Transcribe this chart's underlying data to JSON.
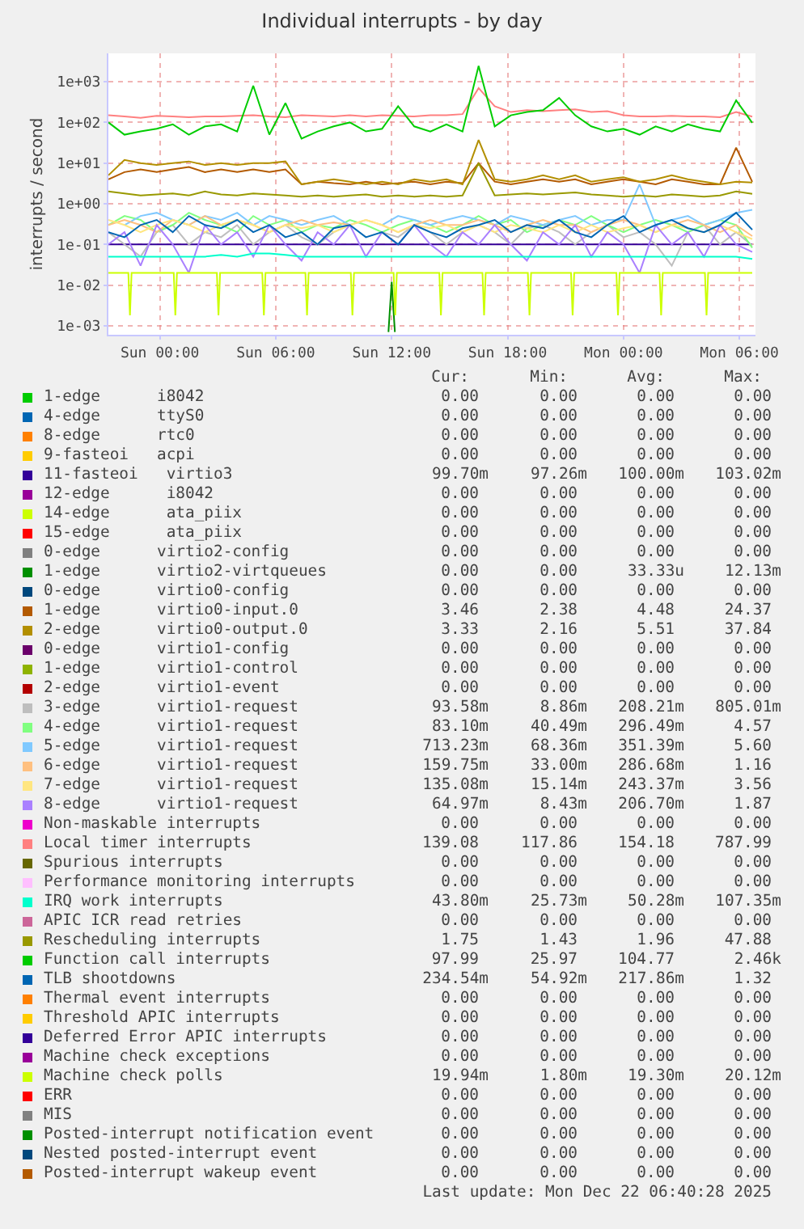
{
  "chart_data": {
    "type": "line",
    "title": "Individual interrupts - by day",
    "ylabel": "interrupts / second",
    "log": "y",
    "grid": true,
    "legend": "bottom",
    "xlim": [
      "2025-12-20T21:20",
      "2025-12-22T06:50"
    ],
    "xticks": [
      {
        "value": "2025-12-21T00:00",
        "label": "Sun 00:00"
      },
      {
        "value": "2025-12-21T06:00",
        "label": "Sun 06:00"
      },
      {
        "value": "2025-12-21T12:00",
        "label": "Sun 12:00"
      },
      {
        "value": "2025-12-21T18:00",
        "label": "Sun 18:00"
      },
      {
        "value": "2025-12-22T00:00",
        "label": "Mon 00:00"
      },
      {
        "value": "2025-12-22T06:00",
        "label": "Mon 06:00"
      }
    ],
    "ylim": [
      0.0006,
      5000
    ],
    "yticks": [
      {
        "value": 0.001,
        "label": "1e-03"
      },
      {
        "value": 0.01,
        "label": "1e-02"
      },
      {
        "value": 0.1,
        "label": "1e-01"
      },
      {
        "value": 1,
        "label": "1e+00"
      },
      {
        "value": 10,
        "label": "1e+01"
      },
      {
        "value": 100,
        "label": "1e+02"
      },
      {
        "value": 1000,
        "label": "1e+03"
      }
    ],
    "x": [
      "2025-12-20T21:20",
      "2025-12-20T22:10",
      "2025-12-20T23:00",
      "2025-12-20T23:50",
      "2025-12-21T00:40",
      "2025-12-21T01:30",
      "2025-12-21T02:20",
      "2025-12-21T03:10",
      "2025-12-21T04:00",
      "2025-12-21T04:50",
      "2025-12-21T05:40",
      "2025-12-21T06:30",
      "2025-12-21T07:20",
      "2025-12-21T08:10",
      "2025-12-21T09:00",
      "2025-12-21T09:50",
      "2025-12-21T10:40",
      "2025-12-21T11:30",
      "2025-12-21T12:20",
      "2025-12-21T13:10",
      "2025-12-21T14:00",
      "2025-12-21T14:50",
      "2025-12-21T15:40",
      "2025-12-21T16:30",
      "2025-12-21T17:20",
      "2025-12-21T18:10",
      "2025-12-21T19:00",
      "2025-12-21T19:50",
      "2025-12-21T20:40",
      "2025-12-21T21:30",
      "2025-12-21T22:20",
      "2025-12-21T23:10",
      "2025-12-22T00:00",
      "2025-12-22T00:50",
      "2025-12-22T01:40",
      "2025-12-22T02:30",
      "2025-12-22T03:20",
      "2025-12-22T04:10",
      "2025-12-22T05:00",
      "2025-12-22T05:50",
      "2025-12-22T06:40"
    ],
    "series": [
      {
        "name": "1-edge      i8042",
        "color": "#00cc00",
        "values": [
          null,
          null,
          null,
          null,
          null,
          null,
          null,
          null,
          null,
          null,
          null,
          null,
          null,
          null,
          null,
          null,
          null,
          null,
          null,
          null,
          null,
          null,
          null,
          null,
          null,
          null,
          null,
          null,
          null,
          null,
          null,
          null,
          null,
          null,
          null,
          null,
          null,
          null,
          null,
          null,
          null
        ]
      },
      {
        "name": "4-edge      ttyS0",
        "color": "#0066b3",
        "values": [
          null,
          null,
          null,
          null,
          null,
          null,
          null,
          null,
          null,
          null,
          null,
          null,
          null,
          null,
          null,
          null,
          null,
          null,
          null,
          null,
          null,
          null,
          null,
          null,
          null,
          null,
          null,
          null,
          null,
          null,
          null,
          null,
          null,
          null,
          null,
          null,
          null,
          null,
          null,
          null,
          null
        ]
      },
      {
        "name": "8-edge      rtc0",
        "color": "#ff8000",
        "values": [
          null,
          null,
          null,
          null,
          null,
          null,
          null,
          null,
          null,
          null,
          null,
          null,
          null,
          null,
          null,
          null,
          null,
          null,
          null,
          null,
          null,
          null,
          null,
          null,
          null,
          null,
          null,
          null,
          null,
          null,
          null,
          null,
          null,
          null,
          null,
          null,
          null,
          null,
          null,
          null,
          null
        ]
      },
      {
        "name": "9-fasteoi   acpi",
        "color": "#ffcc00",
        "values": [
          null,
          null,
          null,
          null,
          null,
          null,
          null,
          null,
          null,
          null,
          null,
          null,
          null,
          null,
          null,
          null,
          null,
          null,
          null,
          null,
          null,
          null,
          null,
          null,
          null,
          null,
          null,
          null,
          null,
          null,
          null,
          null,
          null,
          null,
          null,
          null,
          null,
          null,
          null,
          null,
          null
        ]
      },
      {
        "name": "11-fasteoi   virtio3",
        "color": "#330099",
        "values": [
          0.1,
          0.1,
          0.1,
          0.1,
          0.1,
          0.1,
          0.1,
          0.1,
          0.1,
          0.1,
          0.1,
          0.1,
          0.1,
          0.1,
          0.1,
          0.1,
          0.1,
          0.1,
          0.1,
          0.1,
          0.1,
          0.1,
          0.1,
          0.1,
          0.1,
          0.1,
          0.1,
          0.1,
          0.1,
          0.1,
          0.1,
          0.1,
          0.1,
          0.1,
          0.1,
          0.1,
          0.1,
          0.1,
          0.1,
          0.1,
          0.1
        ]
      },
      {
        "name": "12-edge      i8042",
        "color": "#990099",
        "values": [
          null,
          null,
          null,
          null,
          null,
          null,
          null,
          null,
          null,
          null,
          null,
          null,
          null,
          null,
          null,
          null,
          null,
          null,
          null,
          null,
          null,
          null,
          null,
          null,
          null,
          null,
          null,
          null,
          null,
          null,
          null,
          null,
          null,
          null,
          null,
          null,
          null,
          null,
          null,
          null,
          null
        ]
      },
      {
        "name": "14-edge      ata_piix",
        "color": "#ccff00",
        "values": [
          null,
          null,
          null,
          null,
          null,
          null,
          null,
          null,
          null,
          null,
          null,
          null,
          null,
          null,
          null,
          null,
          null,
          null,
          null,
          null,
          null,
          null,
          null,
          null,
          null,
          null,
          null,
          null,
          null,
          null,
          null,
          null,
          null,
          null,
          null,
          null,
          null,
          null,
          null,
          null,
          null
        ]
      },
      {
        "name": "15-edge      ata_piix",
        "color": "#ff0000",
        "values": [
          null,
          null,
          null,
          null,
          null,
          null,
          null,
          null,
          null,
          null,
          null,
          null,
          null,
          null,
          null,
          null,
          null,
          null,
          null,
          null,
          null,
          null,
          null,
          null,
          null,
          null,
          null,
          null,
          null,
          null,
          null,
          null,
          null,
          null,
          null,
          null,
          null,
          null,
          null,
          null,
          null
        ]
      },
      {
        "name": "0-edge      virtio2-config",
        "color": "#808080",
        "values": [
          null,
          null,
          null,
          null,
          null,
          null,
          null,
          null,
          null,
          null,
          null,
          null,
          null,
          null,
          null,
          null,
          null,
          null,
          null,
          null,
          null,
          null,
          null,
          null,
          null,
          null,
          null,
          null,
          null,
          null,
          null,
          null,
          null,
          null,
          null,
          null,
          null,
          null,
          null,
          null,
          null
        ]
      },
      {
        "name": "1-edge      virtio2-virtqueues",
        "color": "#008f00",
        "x": [
          "2025-12-21T11:50",
          "2025-12-21T12:00",
          "2025-12-21T12:10"
        ],
        "values": [
          0.0007,
          0.012,
          0.0007
        ]
      },
      {
        "name": "0-edge      virtio0-config",
        "color": "#00487d",
        "values": [
          null,
          null,
          null,
          null,
          null,
          null,
          null,
          null,
          null,
          null,
          null,
          null,
          null,
          null,
          null,
          null,
          null,
          null,
          null,
          null,
          null,
          null,
          null,
          null,
          null,
          null,
          null,
          null,
          null,
          null,
          null,
          null,
          null,
          null,
          null,
          null,
          null,
          null,
          null,
          null,
          null
        ]
      },
      {
        "name": "1-edge      virtio0-input.0",
        "color": "#b35a00",
        "values": [
          4,
          6,
          7,
          6,
          7,
          8,
          6,
          7,
          6,
          7,
          6,
          7,
          3,
          3.5,
          3.2,
          3,
          3.5,
          3,
          3.2,
          3.5,
          3,
          3.5,
          3.2,
          10,
          3.5,
          3,
          3.5,
          4,
          3.5,
          4,
          3,
          3.5,
          4,
          3.5,
          3,
          4,
          3.5,
          3,
          3,
          24,
          3.46
        ]
      },
      {
        "name": "2-edge      virtio0-output.0",
        "color": "#b38f00",
        "values": [
          5,
          12,
          10,
          9,
          10,
          11,
          9,
          10,
          9,
          10,
          10,
          11,
          3,
          3.5,
          4,
          3.5,
          3,
          3.5,
          3,
          4,
          3.5,
          4,
          3,
          37,
          4,
          3.5,
          4,
          5,
          4,
          5,
          3.5,
          4,
          4.5,
          3.5,
          4,
          5,
          4,
          3.5,
          3,
          3.5,
          3.33
        ]
      },
      {
        "name": "0-edge      virtio1-config",
        "color": "#6b006b",
        "values": [
          null,
          null,
          null,
          null,
          null,
          null,
          null,
          null,
          null,
          null,
          null,
          null,
          null,
          null,
          null,
          null,
          null,
          null,
          null,
          null,
          null,
          null,
          null,
          null,
          null,
          null,
          null,
          null,
          null,
          null,
          null,
          null,
          null,
          null,
          null,
          null,
          null,
          null,
          null,
          null,
          null
        ]
      },
      {
        "name": "1-edge      virtio1-control",
        "color": "#8fb300",
        "values": [
          null,
          null,
          null,
          null,
          null,
          null,
          null,
          null,
          null,
          null,
          null,
          null,
          null,
          null,
          null,
          null,
          null,
          null,
          null,
          null,
          null,
          null,
          null,
          null,
          null,
          null,
          null,
          null,
          null,
          null,
          null,
          null,
          null,
          null,
          null,
          null,
          null,
          null,
          null,
          null,
          null
        ]
      },
      {
        "name": "2-edge      virtio1-event",
        "color": "#b30000",
        "values": [
          null,
          null,
          null,
          null,
          null,
          null,
          null,
          null,
          null,
          null,
          null,
          null,
          null,
          null,
          null,
          null,
          null,
          null,
          null,
          null,
          null,
          null,
          null,
          null,
          null,
          null,
          null,
          null,
          null,
          null,
          null,
          null,
          null,
          null,
          null,
          null,
          null,
          null,
          null,
          null,
          null
        ]
      },
      {
        "name": "3-edge      virtio1-request",
        "color": "#bebebe",
        "values": [
          0.2,
          0.1,
          0.05,
          0.2,
          0.3,
          0.1,
          0.2,
          0.15,
          0.3,
          0.1,
          0.2,
          0.3,
          0.15,
          0.1,
          0.2,
          0.3,
          null,
          0.2,
          0.15,
          0.3,
          0.2,
          0.1,
          0.2,
          0.3,
          0.2,
          0.1,
          0.25,
          0.3,
          0.2,
          0.1,
          0.2,
          0.3,
          0.15,
          0.2,
          0.1,
          0.03,
          0.2,
          0.3,
          0.1,
          0.2,
          0.094
        ]
      },
      {
        "name": "4-edge      virtio1-request",
        "color": "#80ff80",
        "values": [
          0.3,
          0.5,
          0.4,
          0.2,
          0.3,
          0.6,
          0.4,
          0.3,
          0.2,
          0.5,
          0.3,
          0.4,
          0.2,
          0.3,
          0.25,
          0.4,
          0.3,
          0.2,
          0.3,
          0.4,
          0.3,
          0.2,
          0.3,
          0.5,
          0.3,
          0.4,
          0.2,
          0.3,
          0.4,
          0.3,
          0.5,
          0.3,
          0.2,
          0.3,
          0.4,
          0.3,
          0.2,
          0.3,
          0.4,
          0.3,
          0.083
        ]
      },
      {
        "name": "5-edge      virtio1-request",
        "color": "#80c9ff",
        "values": [
          null,
          0.3,
          0.5,
          0.6,
          0.4,
          0.3,
          0.5,
          0.4,
          0.6,
          0.3,
          0.5,
          0.4,
          0.3,
          0.4,
          0.5,
          0.3,
          null,
          0.3,
          0.5,
          0.4,
          0.3,
          0.4,
          0.5,
          0.4,
          0.3,
          0.5,
          0.4,
          0.3,
          0.4,
          0.5,
          0.3,
          0.4,
          0.4,
          3,
          0.3,
          0.4,
          0.5,
          0.3,
          0.4,
          0.6,
          0.71
        ]
      },
      {
        "name": "6-edge      virtio1-request",
        "color": "#ffc080",
        "values": [
          0.3,
          0.4,
          0.3,
          0.2,
          0.4,
          0.3,
          0.5,
          0.3,
          0.4,
          0.3,
          0.2,
          0.3,
          0.4,
          0.3,
          0.35,
          0.3,
          0.4,
          0.3,
          0.2,
          0.3,
          0.4,
          0.3,
          0.3,
          0.4,
          0.3,
          0.2,
          0.3,
          0.4,
          0.3,
          0.3,
          0.2,
          0.3,
          0.4,
          0.3,
          0.2,
          0.3,
          0.4,
          0.3,
          0.2,
          0.3,
          0.16
        ]
      },
      {
        "name": "7-edge      virtio1-request",
        "color": "#ffe680",
        "values": [
          0.4,
          0.3,
          0.2,
          0.3,
          0.4,
          0.3,
          0.2,
          0.3,
          0.4,
          0.3,
          0.2,
          0.3,
          0.25,
          0.3,
          0.2,
          0.3,
          0.4,
          0.3,
          0.2,
          0.3,
          0.25,
          0.3,
          0.2,
          0.3,
          0.2,
          0.3,
          0.25,
          0.2,
          0.3,
          0.2,
          0.3,
          0.2,
          0.25,
          0.3,
          0.2,
          0.3,
          0.25,
          0.2,
          0.3,
          0.2,
          0.135
        ]
      },
      {
        "name": "8-edge      virtio1-request",
        "color": "#aa80ff",
        "values": [
          0.1,
          0.2,
          0.03,
          0.3,
          0.1,
          0.02,
          0.3,
          0.1,
          0.2,
          0.05,
          0.3,
          0.1,
          0.04,
          0.2,
          0.1,
          0.3,
          0.05,
          0.2,
          0.1,
          0.3,
          0.1,
          0.05,
          0.2,
          0.1,
          0.3,
          0.1,
          0.04,
          0.2,
          0.1,
          0.3,
          0.05,
          0.2,
          0.1,
          0.02,
          0.3,
          0.1,
          0.2,
          0.05,
          0.3,
          0.1,
          0.065
        ]
      },
      {
        "name": "Non-maskable interrupts",
        "color": "#ee00cc",
        "values": [
          null,
          null,
          null,
          null,
          null,
          null,
          null,
          null,
          null,
          null,
          null,
          null,
          null,
          null,
          null,
          null,
          null,
          null,
          null,
          null,
          null,
          null,
          null,
          null,
          null,
          null,
          null,
          null,
          null,
          null,
          null,
          null,
          null,
          null,
          null,
          null,
          null,
          null,
          null,
          null,
          null
        ]
      },
      {
        "name": "Local timer interrupts",
        "color": "#ff8080",
        "values": [
          150,
          140,
          130,
          145,
          140,
          135,
          140,
          140,
          145,
          150,
          140,
          135,
          150,
          145,
          140,
          150,
          140,
          150,
          145,
          140,
          150,
          150,
          160,
          700,
          250,
          180,
          200,
          190,
          200,
          210,
          180,
          190,
          150,
          140,
          140,
          145,
          140,
          140,
          135,
          180,
          139
        ]
      },
      {
        "name": "Spurious interrupts",
        "color": "#666600",
        "values": [
          null,
          null,
          null,
          null,
          null,
          null,
          null,
          null,
          null,
          null,
          null,
          null,
          null,
          null,
          null,
          null,
          null,
          null,
          null,
          null,
          null,
          null,
          null,
          null,
          null,
          null,
          null,
          null,
          null,
          null,
          null,
          null,
          null,
          null,
          null,
          null,
          null,
          null,
          null,
          null,
          null
        ]
      },
      {
        "name": "Performance monitoring interrupts",
        "color": "#ffbfff",
        "values": [
          null,
          null,
          null,
          null,
          null,
          null,
          null,
          null,
          null,
          null,
          null,
          null,
          null,
          null,
          null,
          null,
          null,
          null,
          null,
          null,
          null,
          null,
          null,
          null,
          null,
          null,
          null,
          null,
          null,
          null,
          null,
          null,
          null,
          null,
          null,
          null,
          null,
          null,
          null,
          null,
          null
        ]
      },
      {
        "name": "IRQ work interrupts",
        "color": "#00ffcc",
        "values": [
          0.05,
          0.05,
          0.05,
          0.05,
          0.05,
          0.05,
          0.05,
          0.055,
          0.05,
          0.06,
          0.06,
          0.055,
          0.05,
          0.05,
          0.05,
          0.05,
          0.05,
          0.05,
          0.05,
          0.05,
          0.05,
          0.05,
          0.05,
          0.05,
          0.05,
          0.05,
          0.05,
          0.05,
          0.05,
          0.05,
          0.05,
          0.05,
          0.05,
          0.05,
          0.05,
          0.05,
          0.05,
          0.05,
          0.05,
          0.05,
          0.044
        ]
      },
      {
        "name": "APIC ICR read retries",
        "color": "#cc6699",
        "values": [
          null,
          null,
          null,
          null,
          null,
          null,
          null,
          null,
          null,
          null,
          null,
          null,
          null,
          null,
          null,
          null,
          null,
          null,
          null,
          null,
          null,
          null,
          null,
          null,
          null,
          null,
          null,
          null,
          null,
          null,
          null,
          null,
          null,
          null,
          null,
          null,
          null,
          null,
          null,
          null,
          null
        ]
      },
      {
        "name": "Rescheduling interrupts",
        "color": "#999900",
        "values": [
          2,
          1.8,
          1.6,
          1.7,
          1.8,
          1.6,
          2,
          1.7,
          1.6,
          1.8,
          1.7,
          1.6,
          1.5,
          1.6,
          1.5,
          1.6,
          1.7,
          1.5,
          1.6,
          1.5,
          1.6,
          1.5,
          1.6,
          10,
          1.6,
          1.7,
          1.8,
          1.7,
          1.8,
          1.9,
          1.7,
          1.6,
          1.5,
          1.6,
          1.5,
          1.7,
          1.6,
          1.5,
          1.6,
          2,
          1.75
        ]
      },
      {
        "name": "Function call interrupts",
        "color": "#00cc00",
        "values": [
          100,
          50,
          60,
          70,
          90,
          50,
          80,
          90,
          60,
          800,
          50,
          300,
          40,
          60,
          80,
          100,
          60,
          70,
          250,
          80,
          60,
          90,
          60,
          2460,
          80,
          150,
          180,
          200,
          400,
          150,
          80,
          60,
          70,
          50,
          80,
          60,
          90,
          70,
          60,
          350,
          98
        ]
      },
      {
        "name": "TLB shootdowns",
        "color": "#0066b3",
        "values": [
          0.2,
          0.15,
          0.3,
          0.4,
          0.2,
          0.5,
          0.3,
          0.25,
          0.4,
          0.2,
          0.3,
          0.15,
          0.2,
          0.1,
          0.25,
          0.3,
          0.15,
          0.2,
          0.1,
          0.3,
          0.2,
          0.15,
          0.25,
          0.3,
          0.4,
          0.2,
          0.3,
          0.25,
          0.4,
          0.2,
          0.15,
          0.3,
          0.5,
          0.2,
          0.3,
          0.4,
          0.25,
          0.2,
          0.3,
          0.6,
          0.23
        ]
      },
      {
        "name": "Thermal event interrupts",
        "color": "#ff8000",
        "values": [
          null,
          null,
          null,
          null,
          null,
          null,
          null,
          null,
          null,
          null,
          null,
          null,
          null,
          null,
          null,
          null,
          null,
          null,
          null,
          null,
          null,
          null,
          null,
          null,
          null,
          null,
          null,
          null,
          null,
          null,
          null,
          null,
          null,
          null,
          null,
          null,
          null,
          null,
          null,
          null,
          null
        ]
      },
      {
        "name": "Threshold APIC interrupts",
        "color": "#ffcc00",
        "values": [
          null,
          null,
          null,
          null,
          null,
          null,
          null,
          null,
          null,
          null,
          null,
          null,
          null,
          null,
          null,
          null,
          null,
          null,
          null,
          null,
          null,
          null,
          null,
          null,
          null,
          null,
          null,
          null,
          null,
          null,
          null,
          null,
          null,
          null,
          null,
          null,
          null,
          null,
          null,
          null,
          null
        ]
      },
      {
        "name": "Deferred Error APIC interrupts",
        "color": "#330099",
        "values": [
          null,
          null,
          null,
          null,
          null,
          null,
          null,
          null,
          null,
          null,
          null,
          null,
          null,
          null,
          null,
          null,
          null,
          null,
          null,
          null,
          null,
          null,
          null,
          null,
          null,
          null,
          null,
          null,
          null,
          null,
          null,
          null,
          null,
          null,
          null,
          null,
          null,
          null,
          null,
          null,
          null
        ]
      },
      {
        "name": "Machine check exceptions",
        "color": "#990099",
        "values": [
          null,
          null,
          null,
          null,
          null,
          null,
          null,
          null,
          null,
          null,
          null,
          null,
          null,
          null,
          null,
          null,
          null,
          null,
          null,
          null,
          null,
          null,
          null,
          null,
          null,
          null,
          null,
          null,
          null,
          null,
          null,
          null,
          null,
          null,
          null,
          null,
          null,
          null,
          null,
          null,
          null
        ]
      },
      {
        "name": "Machine check polls",
        "color": "#ccff00",
        "x": [
          "2025-12-20T21:20",
          "2025-12-20T22:22",
          "2025-12-20T22:27",
          "2025-12-20T22:32",
          "2025-12-21T00:43",
          "2025-12-21T00:48",
          "2025-12-21T00:53",
          "2025-12-21T02:57",
          "2025-12-21T03:02",
          "2025-12-21T03:07",
          "2025-12-21T05:18",
          "2025-12-21T05:23",
          "2025-12-21T05:28",
          "2025-12-21T07:32",
          "2025-12-21T07:37",
          "2025-12-21T07:42",
          "2025-12-21T09:53",
          "2025-12-21T09:58",
          "2025-12-21T10:03",
          "2025-12-21T12:06",
          "2025-12-21T12:11",
          "2025-12-21T12:16",
          "2025-12-21T14:28",
          "2025-12-21T14:33",
          "2025-12-21T14:38",
          "2025-12-21T16:42",
          "2025-12-21T16:47",
          "2025-12-21T16:52",
          "2025-12-21T19:03",
          "2025-12-21T19:08",
          "2025-12-21T19:13",
          "2025-12-21T21:17",
          "2025-12-21T21:22",
          "2025-12-21T21:27",
          "2025-12-21T23:38",
          "2025-12-21T23:43",
          "2025-12-21T23:48",
          "2025-12-22T01:52",
          "2025-12-22T01:57",
          "2025-12-22T02:02",
          "2025-12-22T04:13",
          "2025-12-22T04:18",
          "2025-12-22T04:23",
          "2025-12-22T06:40"
        ],
        "values": [
          0.02,
          0.02,
          0.0018,
          0.02,
          0.02,
          0.0018,
          0.02,
          0.02,
          0.0018,
          0.02,
          0.02,
          0.0018,
          0.02,
          0.02,
          0.0018,
          0.02,
          0.02,
          0.0018,
          0.02,
          0.02,
          0.0018,
          0.02,
          0.02,
          0.0018,
          0.02,
          0.02,
          0.0018,
          0.02,
          0.02,
          0.0018,
          0.02,
          0.02,
          0.0018,
          0.02,
          0.02,
          0.0018,
          0.02,
          0.02,
          0.0018,
          0.02,
          0.02,
          0.0018,
          0.02,
          0.02
        ]
      },
      {
        "name": "ERR",
        "color": "#ff0000",
        "values": [
          null,
          null,
          null,
          null,
          null,
          null,
          null,
          null,
          null,
          null,
          null,
          null,
          null,
          null,
          null,
          null,
          null,
          null,
          null,
          null,
          null,
          null,
          null,
          null,
          null,
          null,
          null,
          null,
          null,
          null,
          null,
          null,
          null,
          null,
          null,
          null,
          null,
          null,
          null,
          null,
          null
        ]
      },
      {
        "name": "MIS",
        "color": "#808080",
        "values": [
          null,
          null,
          null,
          null,
          null,
          null,
          null,
          null,
          null,
          null,
          null,
          null,
          null,
          null,
          null,
          null,
          null,
          null,
          null,
          null,
          null,
          null,
          null,
          null,
          null,
          null,
          null,
          null,
          null,
          null,
          null,
          null,
          null,
          null,
          null,
          null,
          null,
          null,
          null,
          null,
          null
        ]
      },
      {
        "name": "Posted-interrupt notification event",
        "color": "#008f00",
        "values": [
          null,
          null,
          null,
          null,
          null,
          null,
          null,
          null,
          null,
          null,
          null,
          null,
          null,
          null,
          null,
          null,
          null,
          null,
          null,
          null,
          null,
          null,
          null,
          null,
          null,
          null,
          null,
          null,
          null,
          null,
          null,
          null,
          null,
          null,
          null,
          null,
          null,
          null,
          null,
          null,
          null
        ]
      },
      {
        "name": "Nested posted-interrupt event",
        "color": "#00487d",
        "values": [
          null,
          null,
          null,
          null,
          null,
          null,
          null,
          null,
          null,
          null,
          null,
          null,
          null,
          null,
          null,
          null,
          null,
          null,
          null,
          null,
          null,
          null,
          null,
          null,
          null,
          null,
          null,
          null,
          null,
          null,
          null,
          null,
          null,
          null,
          null,
          null,
          null,
          null,
          null,
          null,
          null
        ]
      },
      {
        "name": "Posted-interrupt wakeup event",
        "color": "#b35a00",
        "values": [
          null,
          null,
          null,
          null,
          null,
          null,
          null,
          null,
          null,
          null,
          null,
          null,
          null,
          null,
          null,
          null,
          null,
          null,
          null,
          null,
          null,
          null,
          null,
          null,
          null,
          null,
          null,
          null,
          null,
          null,
          null,
          null,
          null,
          null,
          null,
          null,
          null,
          null,
          null,
          null,
          null
        ]
      }
    ],
    "annotations": [
      "Cur:",
      "Min:",
      "Avg:",
      "Max:",
      "0.00 0.00 0.00 0.00",
      "0.00 0.00 0.00 0.00",
      "0.00 0.00 0.00 0.00",
      "0.00 0.00 0.00 0.00",
      "99.70m 97.26m 100.00m 103.02m",
      "0.00 0.00 0.00 0.00",
      "0.00 0.00 0.00 0.00",
      "0.00 0.00 0.00 0.00",
      "0.00 0.00 0.00 0.00",
      "0.00 0.00 33.33u 12.13m",
      "0.00 0.00 0.00 0.00",
      "3.46 2.38 4.48 24.37",
      "3.33 2.16 5.51 37.84",
      "0.00 0.00 0.00 0.00",
      "0.00 0.00 0.00 0.00",
      "0.00 0.00 0.00 0.00",
      "93.58m 8.86m 208.21m 805.01m",
      "83.10m 40.49m 296.49m 4.57",
      "713.23m 68.36m 351.39m 5.60",
      "159.75m 33.00m 286.68m 1.16",
      "135.08m 15.14m 243.37m 3.56",
      "64.97m 8.43m 206.70m 1.87",
      "0.00 0.00 0.00 0.00",
      "139.08 117.86 154.18 787.99",
      "0.00 0.00 0.00 0.00",
      "0.00 0.00 0.00 0.00",
      "43.80m 25.73m 50.28m 107.35m",
      "0.00 0.00 0.00 0.00",
      "1.75 1.43 1.96 47.88",
      "97.99 25.97 104.77 2.46k",
      "234.54m 54.92m 217.86m 1.32",
      "0.00 0.00 0.00 0.00",
      "0.00 0.00 0.00 0.00",
      "0.00 0.00 0.00 0.00",
      "0.00 0.00 0.00 0.00",
      "19.94m 1.80m 19.30m 20.12m",
      "0.00 0.00 0.00 0.00",
      "0.00 0.00 0.00 0.00",
      "0.00 0.00 0.00 0.00",
      "0.00 0.00 0.00 0.00",
      "0.00 0.00 0.00 0.00",
      "Last update: Mon Dec 22 06:40:28 2025"
    ]
  }
}
